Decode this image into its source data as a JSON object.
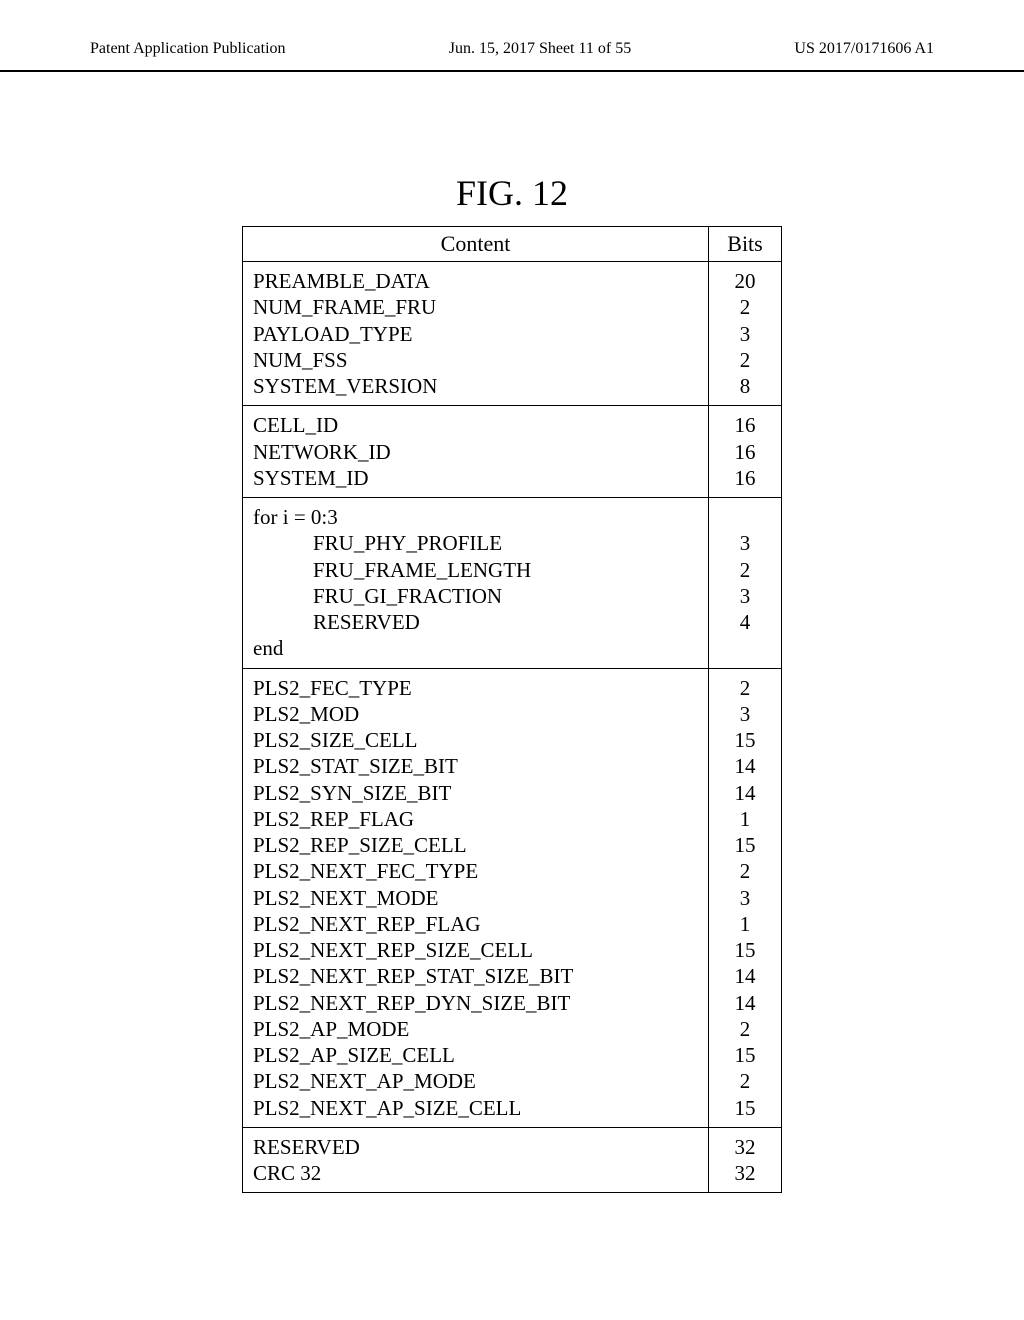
{
  "header": {
    "left": "Patent Application Publication",
    "center": "Jun. 15, 2017  Sheet 11 of 55",
    "right": "US 2017/0171606 A1"
  },
  "figure_title": "FIG. 12",
  "table": {
    "header": {
      "content": "Content",
      "bits": "Bits"
    },
    "sections": [
      {
        "rows": [
          {
            "content": "PREAMBLE_DATA",
            "bits": "20",
            "indent": false
          },
          {
            "content": "NUM_FRAME_FRU",
            "bits": "2",
            "indent": false
          },
          {
            "content": "PAYLOAD_TYPE",
            "bits": "3",
            "indent": false
          },
          {
            "content": "NUM_FSS",
            "bits": "2",
            "indent": false
          },
          {
            "content": "SYSTEM_VERSION",
            "bits": "8",
            "indent": false
          }
        ]
      },
      {
        "rows": [
          {
            "content": "CELL_ID",
            "bits": "16",
            "indent": false
          },
          {
            "content": "NETWORK_ID",
            "bits": "16",
            "indent": false
          },
          {
            "content": "SYSTEM_ID",
            "bits": "16",
            "indent": false
          }
        ]
      },
      {
        "rows": [
          {
            "content": "for i = 0:3",
            "bits": "",
            "indent": false
          },
          {
            "content": "FRU_PHY_PROFILE",
            "bits": "3",
            "indent": true
          },
          {
            "content": "FRU_FRAME_LENGTH",
            "bits": "2",
            "indent": true
          },
          {
            "content": "FRU_GI_FRACTION",
            "bits": "3",
            "indent": true
          },
          {
            "content": "RESERVED",
            "bits": "4",
            "indent": true
          },
          {
            "content": "end",
            "bits": "",
            "indent": false
          }
        ]
      },
      {
        "rows": [
          {
            "content": "PLS2_FEC_TYPE",
            "bits": "2",
            "indent": false
          },
          {
            "content": "PLS2_MOD",
            "bits": "3",
            "indent": false
          },
          {
            "content": "PLS2_SIZE_CELL",
            "bits": "15",
            "indent": false
          },
          {
            "content": "PLS2_STAT_SIZE_BIT",
            "bits": "14",
            "indent": false
          },
          {
            "content": "PLS2_SYN_SIZE_BIT",
            "bits": "14",
            "indent": false
          },
          {
            "content": "PLS2_REP_FLAG",
            "bits": "1",
            "indent": false
          },
          {
            "content": "PLS2_REP_SIZE_CELL",
            "bits": "15",
            "indent": false
          },
          {
            "content": "PLS2_NEXT_FEC_TYPE",
            "bits": "2",
            "indent": false
          },
          {
            "content": "PLS2_NEXT_MODE",
            "bits": "3",
            "indent": false
          },
          {
            "content": "PLS2_NEXT_REP_FLAG",
            "bits": "1",
            "indent": false
          },
          {
            "content": "PLS2_NEXT_REP_SIZE_CELL",
            "bits": "15",
            "indent": false
          },
          {
            "content": "PLS2_NEXT_REP_STAT_SIZE_BIT",
            "bits": "14",
            "indent": false
          },
          {
            "content": "PLS2_NEXT_REP_DYN_SIZE_BIT",
            "bits": "14",
            "indent": false
          },
          {
            "content": "PLS2_AP_MODE",
            "bits": "2",
            "indent": false
          },
          {
            "content": "PLS2_AP_SIZE_CELL",
            "bits": "15",
            "indent": false
          },
          {
            "content": "PLS2_NEXT_AP_MODE",
            "bits": "2",
            "indent": false
          },
          {
            "content": "PLS2_NEXT_AP_SIZE_CELL",
            "bits": "15",
            "indent": false
          }
        ]
      },
      {
        "rows": [
          {
            "content": "RESERVED",
            "bits": "32",
            "indent": false
          },
          {
            "content": "CRC 32",
            "bits": "32",
            "indent": false
          }
        ]
      }
    ]
  }
}
